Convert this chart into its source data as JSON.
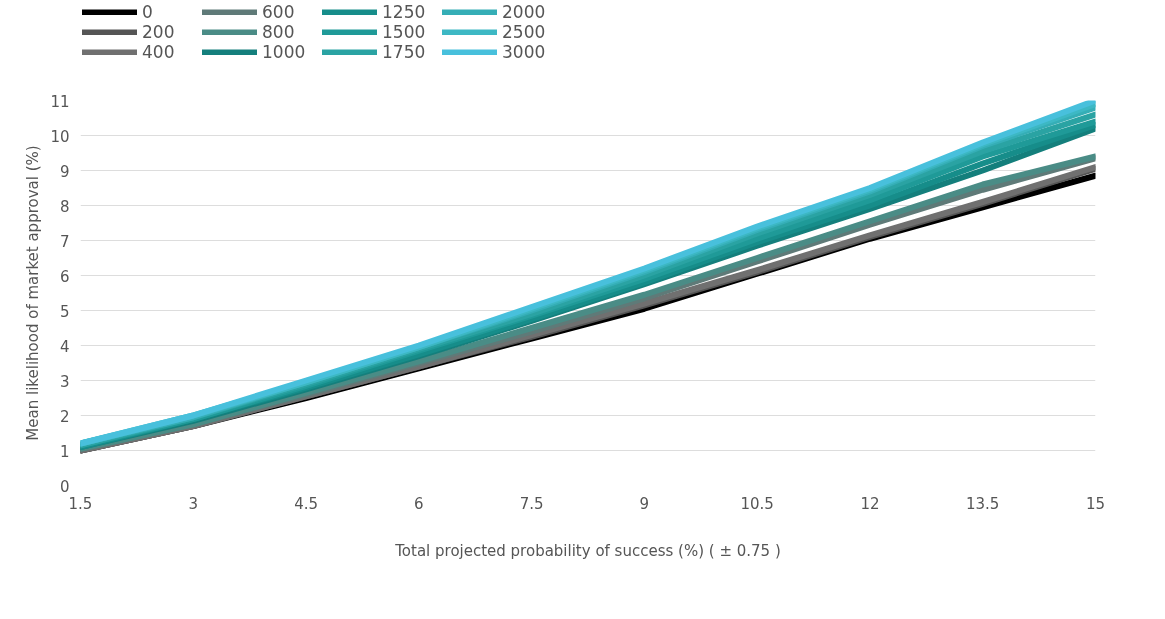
{
  "chart_data": {
    "type": "line",
    "xlabel": "Total projected probability of success (%) ( ± 0.75 )",
    "ylabel": "Mean likelihood of market approval (%)",
    "x": [
      1.5,
      3,
      4.5,
      6,
      7.5,
      9,
      10.5,
      12,
      13.5,
      15
    ],
    "xlim": [
      1.5,
      15
    ],
    "xticks": [
      1.5,
      3,
      4.5,
      6,
      7.5,
      9,
      10.5,
      12,
      13.5,
      15
    ],
    "ylim": [
      0,
      11
    ],
    "yticks": [
      0,
      1,
      2,
      3,
      4,
      5,
      6,
      7,
      8,
      9,
      10,
      11
    ],
    "grid": "y",
    "legend": "top left",
    "line_style": "solid",
    "marker": "none",
    "series": [
      {
        "name": "0",
        "color": "#000000",
        "values": [
          1.0,
          1.7,
          2.5,
          3.35,
          4.2,
          5.05,
          6.05,
          7.05,
          7.95,
          8.85
        ]
      },
      {
        "name": "200",
        "color": "#555555",
        "values": [
          1.0,
          1.7,
          2.55,
          3.4,
          4.25,
          5.15,
          6.1,
          7.1,
          8.05,
          9.05
        ]
      },
      {
        "name": "400",
        "color": "#707070",
        "values": [
          1.0,
          1.7,
          2.55,
          3.4,
          4.3,
          5.2,
          6.15,
          7.15,
          8.1,
          9.1
        ]
      },
      {
        "name": "600",
        "color": "#5f7a78",
        "values": [
          1.05,
          1.75,
          2.6,
          3.5,
          4.4,
          5.35,
          6.4,
          7.45,
          8.45,
          9.35
        ]
      },
      {
        "name": "800",
        "color": "#4a8c86",
        "values": [
          1.05,
          1.75,
          2.65,
          3.55,
          4.5,
          5.45,
          6.5,
          7.55,
          8.6,
          9.4
        ]
      },
      {
        "name": "1000",
        "color": "#147f7c",
        "values": [
          1.1,
          1.85,
          2.75,
          3.7,
          4.7,
          5.75,
          6.85,
          7.9,
          9.0,
          10.2
        ]
      },
      {
        "name": "1250",
        "color": "#168d8a",
        "values": [
          1.1,
          1.9,
          2.8,
          3.75,
          4.75,
          5.8,
          6.95,
          8.0,
          9.2,
          10.3
        ]
      },
      {
        "name": "1500",
        "color": "#1f9a98",
        "values": [
          1.15,
          1.9,
          2.85,
          3.85,
          4.85,
          5.9,
          7.05,
          8.15,
          9.4,
          10.4
        ]
      },
      {
        "name": "1750",
        "color": "#2aa3a3",
        "values": [
          1.15,
          1.95,
          2.9,
          3.9,
          4.9,
          6.0,
          7.2,
          8.3,
          9.55,
          10.6
        ]
      },
      {
        "name": "2000",
        "color": "#35aeb6",
        "values": [
          1.2,
          1.95,
          2.95,
          3.95,
          5.0,
          6.1,
          7.3,
          8.4,
          9.7,
          10.8
        ]
      },
      {
        "name": "2500",
        "color": "#3db8c4",
        "values": [
          1.2,
          2.0,
          2.95,
          3.95,
          5.05,
          6.15,
          7.35,
          8.45,
          9.75,
          10.9
        ]
      },
      {
        "name": "3000",
        "color": "#48c0dc",
        "values": [
          1.2,
          2.0,
          3.0,
          4.0,
          5.1,
          6.2,
          7.4,
          8.5,
          9.8,
          11.0
        ]
      }
    ]
  }
}
